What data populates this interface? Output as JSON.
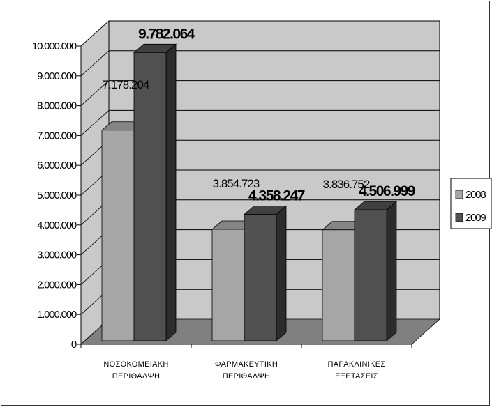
{
  "chart_data": {
    "type": "bar",
    "categories": [
      [
        "ΝΟΣΟΚΟΜΕΙΑΚΗ",
        "ΠΕΡΙΘΑΛΨΗ"
      ],
      [
        "ΦΑΡΜΑΚΕΥΤΙΚΗ",
        "ΠΕΡΙΘΑΛΨΗ"
      ],
      [
        "ΠΑΡΑΚΛΙΝΙΚΕΣ",
        "ΕΞΕΤΑΣΕΙΣ"
      ]
    ],
    "series": [
      {
        "name": "2008",
        "values": [
          7178204,
          3854723,
          3836752
        ],
        "labels": [
          "7.178.204",
          "3.854.723",
          "3.836.752"
        ],
        "color": "#a6a6a6"
      },
      {
        "name": "2009",
        "values": [
          9782064,
          4358247,
          4506999
        ],
        "labels": [
          "9.782.064",
          "4.358.247",
          "4.506.999"
        ],
        "color": "#505050"
      }
    ],
    "yticks": [
      "0",
      "1.000.000",
      "2.000.000",
      "3.000.000",
      "4.000.000",
      "5.000.000",
      "6.000.000",
      "7.000.000",
      "8.000.000",
      "9.000.000",
      "10.000.000"
    ],
    "ylim": [
      0,
      10000000
    ],
    "style": "3d-column",
    "grid": true,
    "legend_position": "right",
    "colors": {
      "wall": "#c9c9c9",
      "floor": "#808080",
      "grid": "#000000"
    }
  }
}
